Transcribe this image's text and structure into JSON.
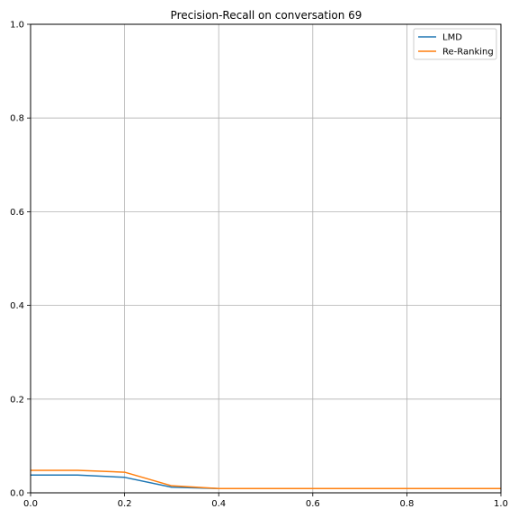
{
  "chart_data": {
    "type": "line",
    "title": "Precision-Recall on conversation 69",
    "xlabel": "",
    "ylabel": "",
    "xlim": [
      0.0,
      1.0
    ],
    "ylim": [
      0.0,
      1.0
    ],
    "grid": true,
    "legend_position": "top-right",
    "x_ticks": [
      "0.0",
      "0.2",
      "0.4",
      "0.6",
      "0.8",
      "1.0"
    ],
    "y_ticks": [
      "0.0",
      "0.2",
      "0.4",
      "0.6",
      "0.8",
      "1.0"
    ],
    "x": [
      0.0,
      0.1,
      0.2,
      0.3,
      0.4,
      0.5,
      0.6,
      0.7,
      0.8,
      0.9,
      1.0
    ],
    "series": [
      {
        "name": "LMD",
        "color": "#1f77b4",
        "values": [
          0.038,
          0.038,
          0.033,
          0.012,
          0.009,
          0.009,
          0.009,
          0.009,
          0.009,
          0.009,
          0.009
        ]
      },
      {
        "name": "Re-Ranking",
        "color": "#ff7f0e",
        "values": [
          0.048,
          0.048,
          0.044,
          0.015,
          0.009,
          0.009,
          0.009,
          0.009,
          0.009,
          0.009,
          0.009
        ]
      }
    ]
  }
}
